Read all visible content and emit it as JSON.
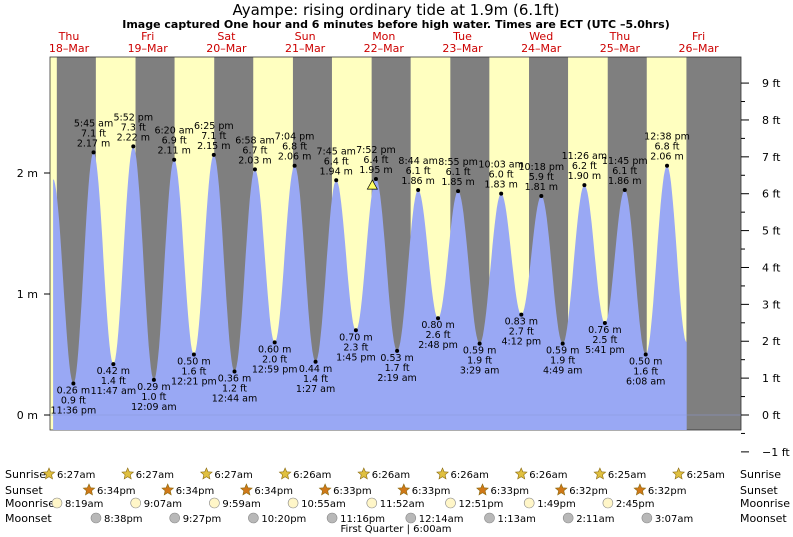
{
  "header": {
    "title": "Ayampe: rising  ordinary tide at 1.9m (6.1ft)",
    "subtitle": "Image captured One hour and 6 minutes before high water. Times are ECT (UTC –5.0hrs)"
  },
  "days": [
    {
      "dow": "Thu",
      "date": "18–Mar"
    },
    {
      "dow": "Fri",
      "date": "19–Mar"
    },
    {
      "dow": "Sat",
      "date": "20–Mar"
    },
    {
      "dow": "Sun",
      "date": "21–Mar"
    },
    {
      "dow": "Mon",
      "date": "22–Mar"
    },
    {
      "dow": "Tue",
      "date": "23–Mar"
    },
    {
      "dow": "Wed",
      "date": "24–Mar"
    },
    {
      "dow": "Thu",
      "date": "25–Mar"
    },
    {
      "dow": "Fri",
      "date": "26–Mar"
    }
  ],
  "chart_data": {
    "type": "area",
    "title": "Ayampe: rising  ordinary tide at 1.9m (6.1ft)",
    "ylim_m": [
      -0.35,
      2.6
    ],
    "left_axis": {
      "unit": "m",
      "ticks": [
        0,
        1,
        2
      ],
      "labels": [
        "0 m",
        "1 m",
        "2 m"
      ]
    },
    "right_axis": {
      "unit": "ft",
      "ticks": [
        -1,
        0,
        1,
        2,
        3,
        4,
        5,
        6,
        7,
        8,
        9
      ],
      "labels": [
        "−1 ft",
        "0 ft",
        "1 ft",
        "2 ft",
        "3 ft",
        "4 ft",
        "5 ft",
        "6 ft",
        "7 ft",
        "8 ft",
        "9 ft"
      ]
    },
    "series_color": "#99a8f4",
    "extremes": [
      {
        "type": "low",
        "time": "11:36 pm",
        "m": 0.26,
        "lines": [
          "0.26 m",
          "0.9 ft",
          "11:36 pm"
        ]
      },
      {
        "type": "high",
        "time": "5:45 am",
        "m": 2.17,
        "lines": [
          "5:45 am",
          "7.1 ft",
          "2.17 m"
        ]
      },
      {
        "type": "low",
        "time": "11:47 am",
        "m": 0.42,
        "lines": [
          "0.42 m",
          "1.4 ft",
          "11:47 am"
        ]
      },
      {
        "type": "high",
        "time": "5:52 pm",
        "m": 2.22,
        "lines": [
          "5:52 pm",
          "7.3 ft",
          "2.22 m"
        ]
      },
      {
        "type": "low",
        "time": "12:09 am",
        "m": 0.29,
        "lines": [
          "0.29 m",
          "1.0 ft",
          "12:09 am"
        ]
      },
      {
        "type": "high",
        "time": "6:20 am",
        "m": 2.11,
        "lines": [
          "6:20 am",
          "6.9 ft",
          "2.11 m"
        ]
      },
      {
        "type": "low",
        "time": "12:21 pm",
        "m": 0.5,
        "lines": [
          "0.50 m",
          "1.6 ft",
          "12:21 pm"
        ]
      },
      {
        "type": "high",
        "time": "6:25 pm",
        "m": 2.15,
        "lines": [
          "6:25 pm",
          "7.1 ft",
          "2.15 m"
        ]
      },
      {
        "type": "low",
        "time": "12:44 am",
        "m": 0.36,
        "lines": [
          "0.36 m",
          "1.2 ft",
          "12:44 am"
        ]
      },
      {
        "type": "high",
        "time": "6:58 am",
        "m": 2.03,
        "lines": [
          "6:58 am",
          "6.7 ft",
          "2.03 m"
        ]
      },
      {
        "type": "low",
        "time": "12:59 pm",
        "m": 0.6,
        "lines": [
          "0.60 m",
          "2.0 ft",
          "12:59 pm"
        ]
      },
      {
        "type": "high",
        "time": "7:04 pm",
        "m": 2.06,
        "lines": [
          "7:04 pm",
          "6.8 ft",
          "2.06 m"
        ]
      },
      {
        "type": "low",
        "time": "1:27 am",
        "m": 0.44,
        "lines": [
          "0.44 m",
          "1.4 ft",
          "1:27 am"
        ]
      },
      {
        "type": "high",
        "time": "7:45 am",
        "m": 1.94,
        "lines": [
          "7:45 am",
          "6.4 ft",
          "1.94 m"
        ]
      },
      {
        "type": "low",
        "time": "1:45 pm",
        "m": 0.7,
        "lines": [
          "0.70 m",
          "2.3 ft",
          "1:45 pm"
        ]
      },
      {
        "type": "high",
        "time": "7:52 pm",
        "m": 1.95,
        "lines": [
          "7:52 pm",
          "6.4 ft",
          "1.95 m"
        ]
      },
      {
        "type": "low",
        "time": "2:19 am",
        "m": 0.53,
        "lines": [
          "0.53 m",
          "1.7 ft",
          "2:19 am"
        ]
      },
      {
        "type": "high",
        "time": "8:44 am",
        "m": 1.86,
        "lines": [
          "8:44 am",
          "6.1 ft",
          "1.86 m"
        ]
      },
      {
        "type": "low",
        "time": "2:48 pm",
        "m": 0.8,
        "lines": [
          "0.80 m",
          "2.6 ft",
          "2:48 pm"
        ]
      },
      {
        "type": "high",
        "time": "8:55 pm",
        "m": 1.85,
        "lines": [
          "8:55 pm",
          "6.1 ft",
          "1.85 m"
        ]
      },
      {
        "type": "low",
        "time": "3:29 am",
        "m": 0.59,
        "lines": [
          "0.59 m",
          "1.9 ft",
          "3:29 am"
        ]
      },
      {
        "type": "high",
        "time": "10:03 am",
        "m": 1.83,
        "lines": [
          "10:03 am",
          "6.0 ft",
          "1.83 m"
        ]
      },
      {
        "type": "low",
        "time": "4:12 pm",
        "m": 0.83,
        "lines": [
          "0.83 m",
          "2.7 ft",
          "4:12 pm"
        ]
      },
      {
        "type": "high",
        "time": "10:18 pm",
        "m": 1.81,
        "lines": [
          "10:18 pm",
          "5.9 ft",
          "1.81 m"
        ]
      },
      {
        "type": "low",
        "time": "4:49 am",
        "m": 0.59,
        "lines": [
          "0.59 m",
          "1.9 ft",
          "4:49 am"
        ]
      },
      {
        "type": "high",
        "time": "11:26 am",
        "m": 1.9,
        "lines": [
          "11:26 am",
          "6.2 ft",
          "1.90 m"
        ]
      },
      {
        "type": "low",
        "time": "5:41 pm",
        "m": 0.76,
        "lines": [
          "0.76 m",
          "2.5 ft",
          "5:41 pm"
        ]
      },
      {
        "type": "high",
        "time": "11:45 pm",
        "m": 1.86,
        "lines": [
          "11:45 pm",
          "6.1 ft",
          "1.86 m"
        ]
      },
      {
        "type": "low",
        "time": "6:08 am",
        "m": 0.5,
        "lines": [
          "0.50 m",
          "1.6 ft",
          "6:08 am"
        ]
      },
      {
        "type": "high",
        "time": "12:38 pm",
        "m": 2.06,
        "lines": [
          "12:38 pm",
          "6.8 ft",
          "2.06 m"
        ]
      }
    ],
    "current": {
      "m": 1.9,
      "ft": 6.1,
      "state": "rising"
    }
  },
  "astro": {
    "row_labels": {
      "sunrise": "Sunrise",
      "sunset": "Sunset",
      "moonrise": "Moonrise",
      "moonset": "Moonset"
    },
    "sunrise": [
      "6:27am",
      "6:27am",
      "6:27am",
      "6:26am",
      "6:26am",
      "6:26am",
      "6:26am",
      "6:25am",
      "6:25am"
    ],
    "sunset": [
      "6:34pm",
      "6:34pm",
      "6:34pm",
      "6:33pm",
      "6:33pm",
      "6:33pm",
      "6:32pm",
      "6:32pm"
    ],
    "moonrise": [
      "8:19am",
      "9:07am",
      "9:59am",
      "10:55am",
      "11:52am",
      "12:51pm",
      "1:49pm",
      "2:45pm"
    ],
    "moonset": [
      "8:38pm",
      "9:27pm",
      "10:20pm",
      "11:16pm",
      "12:14am",
      "1:13am",
      "2:11am",
      "3:07am"
    ],
    "moon_phase": "First Quarter | 6:00am"
  },
  "colors": {
    "day": "#ffffc0",
    "night": "#7f7f7f",
    "water": "#99a8f4",
    "date": "#cc0000",
    "sun": "#e0c040",
    "moon": "#fff6c8"
  }
}
